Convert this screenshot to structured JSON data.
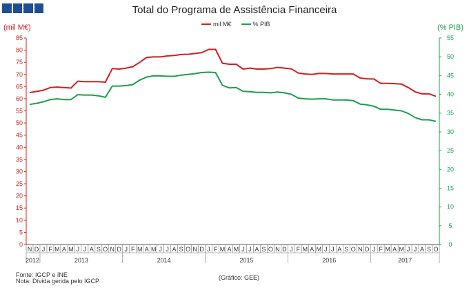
{
  "title": "Total do Programa de Assistência Financeira",
  "left_unit": "(mil M€)",
  "right_unit": "(% PIB)",
  "footer": {
    "source": "Fonte: IGCP e INE",
    "note": "Nota: Dívida gerida pelo IGCP",
    "credit": "(Gráfico: GEE)"
  },
  "colors": {
    "series1": "#d01f1f",
    "series2": "#1b9e4b",
    "logo": "#1f4e96"
  },
  "chart_data": {
    "type": "line",
    "title": "Total do Programa de Assistência Financeira",
    "x": [
      "2012-11",
      "2012-12",
      "2013-01",
      "2013-02",
      "2013-03",
      "2013-04",
      "2013-05",
      "2013-06",
      "2013-07",
      "2013-08",
      "2013-09",
      "2013-10",
      "2013-11",
      "2013-12",
      "2014-01",
      "2014-02",
      "2014-03",
      "2014-04",
      "2014-05",
      "2014-06",
      "2014-07",
      "2014-08",
      "2014-09",
      "2014-10",
      "2014-11",
      "2014-12",
      "2015-01",
      "2015-02",
      "2015-03",
      "2015-04",
      "2015-05",
      "2015-06",
      "2015-07",
      "2015-08",
      "2015-09",
      "2015-10",
      "2015-11",
      "2015-12",
      "2016-01",
      "2016-02",
      "2016-03",
      "2016-04",
      "2016-05",
      "2016-06",
      "2016-07",
      "2016-08",
      "2016-09",
      "2016-10",
      "2016-11",
      "2016-12",
      "2017-01",
      "2017-02",
      "2017-03",
      "2017-04",
      "2017-05",
      "2017-06",
      "2017-07",
      "2017-08",
      "2017-09",
      "2017-10"
    ],
    "month_labels": [
      "N",
      "D",
      "J",
      "F",
      "M",
      "A",
      "M",
      "J",
      "J",
      "A",
      "S",
      "O",
      "N",
      "D",
      "J",
      "F",
      "M",
      "A",
      "M",
      "J",
      "J",
      "A",
      "S",
      "O",
      "N",
      "D",
      "J",
      "F",
      "M",
      "A",
      "M",
      "J",
      "J",
      "A",
      "S",
      "O",
      "N",
      "D",
      "J",
      "F",
      "M",
      "A",
      "M",
      "J",
      "J",
      "A",
      "S",
      "O",
      "N",
      "D",
      "J",
      "F",
      "M",
      "A",
      "M",
      "J",
      "J",
      "A",
      "S",
      "O"
    ],
    "year_labels": [
      {
        "label": "2012",
        "start": 0,
        "end": 1
      },
      {
        "label": "2013",
        "start": 2,
        "end": 13
      },
      {
        "label": "2014",
        "start": 14,
        "end": 25
      },
      {
        "label": "2015",
        "start": 26,
        "end": 37
      },
      {
        "label": "2016",
        "start": 38,
        "end": 49
      },
      {
        "label": "2017",
        "start": 50,
        "end": 59
      }
    ],
    "series": [
      {
        "name": "mil M€",
        "axis": "left",
        "values": [
          62.5,
          63.0,
          63.5,
          64.6,
          64.8,
          64.6,
          64.4,
          67.2,
          67.0,
          67.0,
          67.0,
          66.8,
          72.4,
          72.2,
          72.6,
          73.2,
          75.0,
          77.0,
          77.2,
          77.2,
          77.6,
          77.8,
          78.2,
          78.3,
          78.6,
          79.0,
          80.3,
          80.3,
          74.6,
          74.2,
          74.2,
          72.2,
          72.6,
          72.2,
          72.2,
          72.4,
          72.9,
          72.6,
          72.3,
          70.6,
          70.2,
          70.0,
          70.4,
          70.4,
          70.2,
          70.2,
          70.2,
          70.2,
          68.5,
          68.2,
          68.1,
          66.3,
          66.3,
          66.2,
          66.0,
          64.6,
          62.8,
          62.0,
          62.0,
          61.0
        ]
      },
      {
        "name": "% PIB",
        "axis": "right",
        "values": [
          37.3,
          37.6,
          38.0,
          38.6,
          38.8,
          38.6,
          38.6,
          39.9,
          39.8,
          39.8,
          39.6,
          39.2,
          42.2,
          42.2,
          42.3,
          42.6,
          43.8,
          44.6,
          44.9,
          44.9,
          44.8,
          44.8,
          45.1,
          45.3,
          45.5,
          45.8,
          45.9,
          45.8,
          42.4,
          41.7,
          41.8,
          40.8,
          40.7,
          40.5,
          40.5,
          40.4,
          40.6,
          40.4,
          40.0,
          39.0,
          38.8,
          38.7,
          38.8,
          38.8,
          38.5,
          38.5,
          38.5,
          38.3,
          37.4,
          37.2,
          36.8,
          36.0,
          36.0,
          35.8,
          35.6,
          34.9,
          33.8,
          33.2,
          33.2,
          32.8
        ]
      }
    ],
    "y_left": {
      "min": 0,
      "max": 85,
      "step": 5
    },
    "y_right": {
      "min": 0,
      "max": 55,
      "step": 5
    },
    "grid": false,
    "legend_position": "top-center"
  }
}
